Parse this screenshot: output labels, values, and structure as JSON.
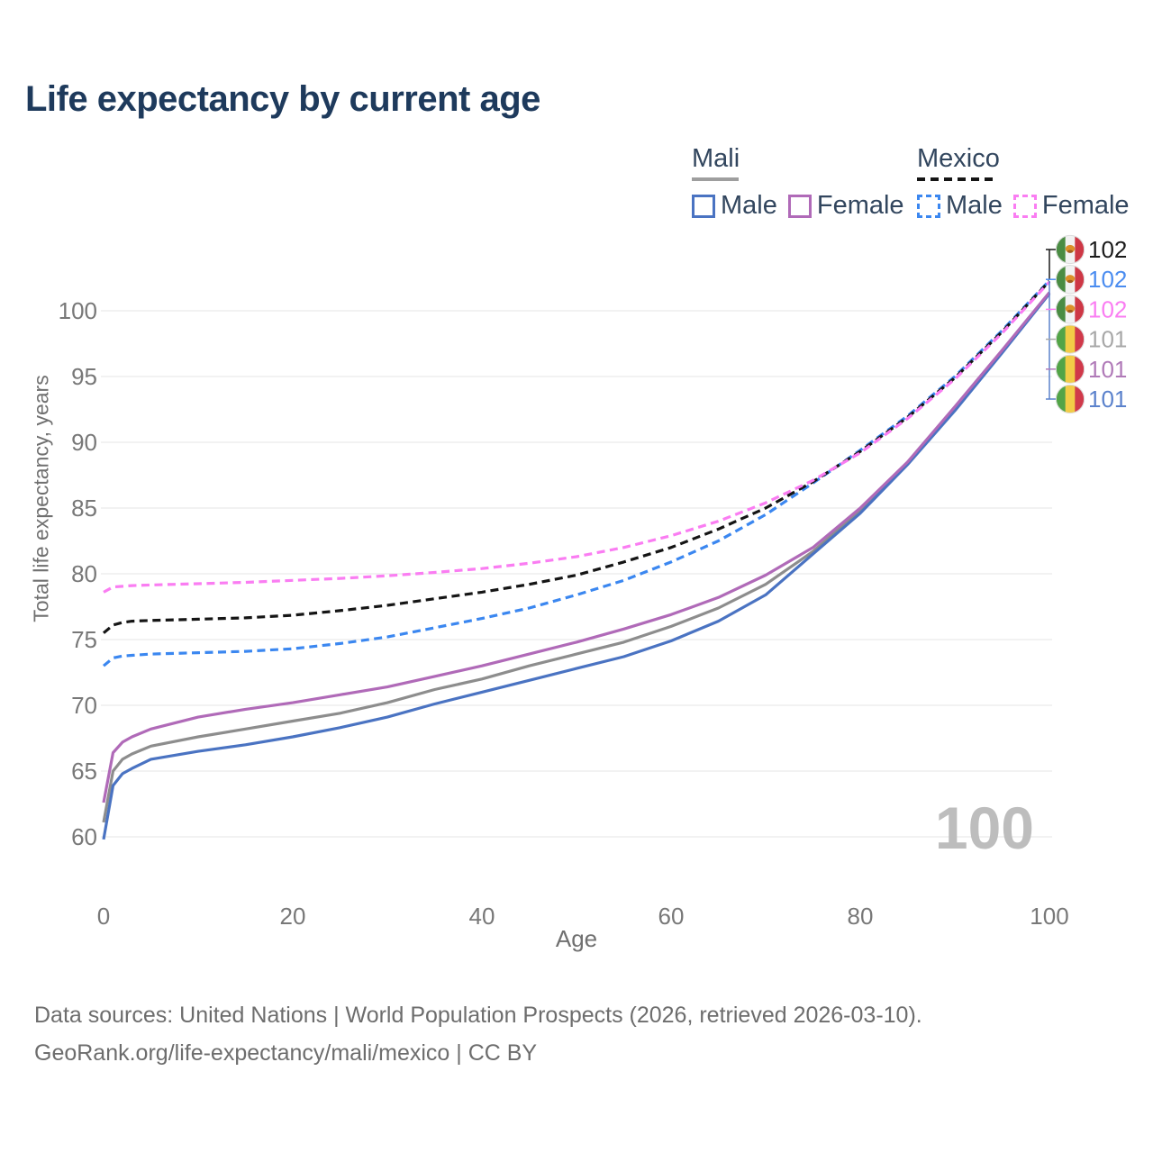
{
  "title": "Life expectancy by current age",
  "watermark": "100",
  "legend": {
    "groups": [
      {
        "title": "Mali",
        "line_style": "solid",
        "underline_color": "#9e9e9e",
        "items": [
          {
            "label": "Male",
            "color": "#4a73c2"
          },
          {
            "label": "Female",
            "color": "#b06ab8"
          }
        ]
      },
      {
        "title": "Mexico",
        "line_style": "dashed",
        "underline_color": "#151515",
        "items": [
          {
            "label": "Male",
            "color": "#3b87f0"
          },
          {
            "label": "Female",
            "color": "#fa7df2"
          }
        ]
      }
    ]
  },
  "footer": {
    "line1": "Data sources: United Nations | World Population Prospects (2026, retrieved 2026-03-10).",
    "line2": "GeoRank.org/life-expectancy/mali/mexico | CC BY"
  },
  "chart_data": {
    "type": "line",
    "title": "Life expectancy by current age",
    "xlabel": "Age",
    "ylabel": "Total life expectancy, years",
    "xlim": [
      0,
      100
    ],
    "ylim": [
      58,
      103
    ],
    "x_ticks": [
      0,
      20,
      40,
      60,
      80,
      100
    ],
    "y_ticks": [
      60,
      65,
      70,
      75,
      80,
      85,
      90,
      95,
      100
    ],
    "grid": "horizontal",
    "grid_color": "#e6e6e6",
    "tick_color": "#787878",
    "legend_position": "top-right",
    "ages": [
      0,
      1,
      2,
      3,
      5,
      10,
      15,
      20,
      25,
      30,
      35,
      40,
      45,
      50,
      55,
      60,
      65,
      70,
      75,
      80,
      85,
      90,
      95,
      100
    ],
    "series": [
      {
        "id": "mali-both",
        "country": "Mali",
        "sex": "both",
        "style": "solid",
        "color": "#8d8d8d",
        "values": [
          61.1,
          65.0,
          65.9,
          66.3,
          66.9,
          67.6,
          68.2,
          68.8,
          69.4,
          70.2,
          71.2,
          72.0,
          73.0,
          73.9,
          74.8,
          76.0,
          77.4,
          79.2,
          81.7,
          84.8,
          88.4,
          92.55,
          96.9,
          101.35
        ]
      },
      {
        "id": "mali-male",
        "country": "Mali",
        "sex": "male",
        "style": "solid",
        "color": "#4a73c2",
        "values": [
          59.8,
          63.9,
          64.8,
          65.2,
          65.9,
          66.5,
          67.0,
          67.6,
          68.3,
          69.1,
          70.1,
          71.0,
          71.9,
          72.8,
          73.7,
          74.9,
          76.4,
          78.4,
          81.5,
          84.6,
          88.3,
          92.4,
          96.8,
          101.3
        ]
      },
      {
        "id": "mali-female",
        "country": "Mali",
        "sex": "female",
        "style": "solid",
        "color": "#b06ab8",
        "values": [
          62.6,
          66.4,
          67.2,
          67.6,
          68.2,
          69.1,
          69.7,
          70.2,
          70.8,
          71.4,
          72.2,
          73.0,
          73.9,
          74.8,
          75.8,
          76.9,
          78.2,
          79.9,
          82.0,
          85.0,
          88.5,
          92.7,
          97.0,
          101.4
        ]
      },
      {
        "id": "mexico-male",
        "country": "Mexico",
        "sex": "male",
        "style": "dashed",
        "color": "#3b87f0",
        "values": [
          73.0,
          73.6,
          73.75,
          73.8,
          73.9,
          74.0,
          74.1,
          74.3,
          74.7,
          75.2,
          75.9,
          76.6,
          77.4,
          78.4,
          79.5,
          80.9,
          82.5,
          84.5,
          86.9,
          89.4,
          92.0,
          95.0,
          98.5,
          102.3
        ]
      },
      {
        "id": "mexico-both",
        "country": "Mexico",
        "sex": "both",
        "style": "dashed",
        "color": "#151515",
        "values": [
          75.5,
          76.1,
          76.3,
          76.4,
          76.45,
          76.55,
          76.65,
          76.85,
          77.2,
          77.6,
          78.1,
          78.6,
          79.2,
          79.9,
          80.9,
          82.0,
          83.4,
          85.0,
          87.0,
          89.3,
          91.9,
          94.9,
          98.4,
          102.25
        ]
      },
      {
        "id": "mexico-female",
        "country": "Mexico",
        "sex": "female",
        "style": "dashed",
        "color": "#fa7df2",
        "values": [
          78.6,
          79.0,
          79.05,
          79.1,
          79.15,
          79.25,
          79.35,
          79.5,
          79.65,
          79.85,
          80.1,
          80.4,
          80.8,
          81.3,
          82.0,
          82.9,
          84.0,
          85.4,
          87.1,
          89.2,
          91.8,
          94.8,
          98.3,
          102.2
        ]
      }
    ],
    "end_labels": [
      {
        "value": "102",
        "flag": "mexico",
        "series": "mexico-both",
        "color": "#1a1a1a"
      },
      {
        "value": "102",
        "flag": "mexico",
        "series": "mexico-male",
        "color": "#4a8cf0"
      },
      {
        "value": "102",
        "flag": "mexico",
        "series": "mexico-female",
        "color": "#fa7df2"
      },
      {
        "value": "101",
        "flag": "mali",
        "series": "mali-both",
        "color": "#a8a8a8"
      },
      {
        "value": "101",
        "flag": "mali",
        "series": "mali-female",
        "color": "#b07ab8"
      },
      {
        "value": "101",
        "flag": "mali",
        "series": "mali-male",
        "color": "#5b82cc"
      }
    ],
    "flags": {
      "mexico": {
        "colors": [
          "#4a8c43",
          "#f2f2f2",
          "#ce3745"
        ],
        "emblem": "#dc8f28",
        "emblem_dark": "#a35d1d"
      },
      "mali": {
        "colors": [
          "#52a447",
          "#f2cc47",
          "#d0394a"
        ]
      }
    }
  }
}
